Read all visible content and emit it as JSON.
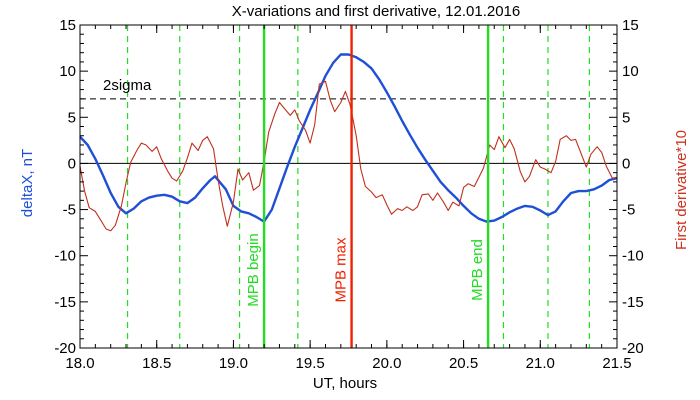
{
  "chart_data": {
    "type": "line",
    "title": "X-variations and first derivative, 12.01.2016",
    "xlabel": "UT, hours",
    "ylabel_left": "deltaX, nT",
    "ylabel_right": "First derivative*10",
    "xlim": [
      18.0,
      21.5
    ],
    "ylim": [
      -20,
      15
    ],
    "x_ticks": [
      "18.0",
      "18.5",
      "19.0",
      "19.5",
      "20.0",
      "20.5",
      "21.0",
      "21.5"
    ],
    "y_ticks": [
      "15",
      "10",
      "5",
      "0",
      "-5",
      "-10",
      "-15",
      "-20"
    ],
    "grid": false,
    "colors": {
      "deltaX": "#1f4fd6",
      "derivative": "#c0301e",
      "mpb_markers": "#22dd22",
      "mpb_max": "#ee2200",
      "axes": "#000000"
    },
    "series": [
      {
        "name": "deltaX, nT",
        "points": [
          [
            18.0,
            2.9
          ],
          [
            18.05,
            2.0
          ],
          [
            18.1,
            0.5
          ],
          [
            18.15,
            -1.3
          ],
          [
            18.2,
            -3.2
          ],
          [
            18.25,
            -4.7
          ],
          [
            18.3,
            -5.4
          ],
          [
            18.35,
            -4.9
          ],
          [
            18.4,
            -4.1
          ],
          [
            18.45,
            -3.7
          ],
          [
            18.5,
            -3.5
          ],
          [
            18.55,
            -3.4
          ],
          [
            18.6,
            -3.6
          ],
          [
            18.65,
            -4.1
          ],
          [
            18.7,
            -4.3
          ],
          [
            18.75,
            -3.7
          ],
          [
            18.8,
            -2.7
          ],
          [
            18.85,
            -1.8
          ],
          [
            18.88,
            -1.4
          ],
          [
            18.95,
            -2.8
          ],
          [
            19.0,
            -4.6
          ],
          [
            19.05,
            -5.2
          ],
          [
            19.1,
            -5.4
          ],
          [
            19.15,
            -5.8
          ],
          [
            19.2,
            -6.3
          ],
          [
            19.25,
            -5.0
          ],
          [
            19.3,
            -2.7
          ],
          [
            19.35,
            -0.4
          ],
          [
            19.4,
            1.8
          ],
          [
            19.45,
            3.8
          ],
          [
            19.5,
            5.8
          ],
          [
            19.55,
            7.6
          ],
          [
            19.6,
            9.5
          ],
          [
            19.65,
            10.9
          ],
          [
            19.7,
            11.8
          ],
          [
            19.75,
            11.8
          ],
          [
            19.8,
            11.5
          ],
          [
            19.85,
            11.0
          ],
          [
            19.9,
            10.3
          ],
          [
            19.95,
            9.1
          ],
          [
            20.0,
            7.7
          ],
          [
            20.05,
            6.2
          ],
          [
            20.1,
            4.6
          ],
          [
            20.15,
            3.1
          ],
          [
            20.2,
            1.7
          ],
          [
            20.25,
            0.4
          ],
          [
            20.3,
            -0.8
          ],
          [
            20.35,
            -2.0
          ],
          [
            20.4,
            -2.9
          ],
          [
            20.45,
            -3.7
          ],
          [
            20.5,
            -4.6
          ],
          [
            20.55,
            -5.4
          ],
          [
            20.6,
            -6.0
          ],
          [
            20.65,
            -6.3
          ],
          [
            20.7,
            -6.2
          ],
          [
            20.75,
            -5.8
          ],
          [
            20.8,
            -5.3
          ],
          [
            20.85,
            -4.9
          ],
          [
            20.9,
            -4.6
          ],
          [
            20.95,
            -4.7
          ],
          [
            21.0,
            -5.1
          ],
          [
            21.05,
            -5.6
          ],
          [
            21.1,
            -5.2
          ],
          [
            21.15,
            -4.1
          ],
          [
            21.2,
            -3.2
          ],
          [
            21.25,
            -3.0
          ],
          [
            21.3,
            -3.0
          ],
          [
            21.35,
            -2.8
          ],
          [
            21.4,
            -2.4
          ],
          [
            21.45,
            -1.8
          ],
          [
            21.5,
            -1.6
          ]
        ]
      },
      {
        "name": "First derivative*10",
        "points": [
          [
            18.0,
            -0.3
          ],
          [
            18.03,
            -3.0
          ],
          [
            18.06,
            -4.8
          ],
          [
            18.1,
            -5.2
          ],
          [
            18.13,
            -6.0
          ],
          [
            18.17,
            -7.1
          ],
          [
            18.2,
            -7.3
          ],
          [
            18.23,
            -6.7
          ],
          [
            18.27,
            -4.6
          ],
          [
            18.3,
            -2.1
          ],
          [
            18.33,
            0.1
          ],
          [
            18.37,
            1.4
          ],
          [
            18.4,
            2.2
          ],
          [
            18.43,
            2.0
          ],
          [
            18.47,
            1.3
          ],
          [
            18.5,
            1.8
          ],
          [
            18.53,
            0.5
          ],
          [
            18.57,
            -0.8
          ],
          [
            18.6,
            -1.6
          ],
          [
            18.63,
            -1.9
          ],
          [
            18.67,
            -0.8
          ],
          [
            18.7,
            0.6
          ],
          [
            18.73,
            2.2
          ],
          [
            18.77,
            1.4
          ],
          [
            18.8,
            2.5
          ],
          [
            18.83,
            2.9
          ],
          [
            18.87,
            1.6
          ],
          [
            18.9,
            -1.8
          ],
          [
            18.93,
            -4.6
          ],
          [
            18.96,
            -6.8
          ],
          [
            19.0,
            -4.2
          ],
          [
            19.03,
            -0.6
          ],
          [
            19.06,
            -1.8
          ],
          [
            19.1,
            -1.0
          ],
          [
            19.13,
            -2.9
          ],
          [
            19.17,
            -2.4
          ],
          [
            19.2,
            0.2
          ],
          [
            19.23,
            3.4
          ],
          [
            19.27,
            5.4
          ],
          [
            19.3,
            6.6
          ],
          [
            19.33,
            6.0
          ],
          [
            19.37,
            5.2
          ],
          [
            19.4,
            5.8
          ],
          [
            19.43,
            4.6
          ],
          [
            19.47,
            3.6
          ],
          [
            19.5,
            2.2
          ],
          [
            19.53,
            4.2
          ],
          [
            19.56,
            8.6
          ],
          [
            19.6,
            8.9
          ],
          [
            19.63,
            6.9
          ],
          [
            19.66,
            5.6
          ],
          [
            19.7,
            6.6
          ],
          [
            19.73,
            7.8
          ],
          [
            19.76,
            6.4
          ],
          [
            19.8,
            3.0
          ],
          [
            19.83,
            -0.6
          ],
          [
            19.86,
            -2.5
          ],
          [
            19.9,
            -3.1
          ],
          [
            19.93,
            -3.7
          ],
          [
            19.97,
            -3.4
          ],
          [
            20.0,
            -4.5
          ],
          [
            20.03,
            -5.5
          ],
          [
            20.07,
            -4.9
          ],
          [
            20.1,
            -5.1
          ],
          [
            20.13,
            -4.7
          ],
          [
            20.17,
            -5.1
          ],
          [
            20.2,
            -4.7
          ],
          [
            20.23,
            -3.4
          ],
          [
            20.27,
            -3.3
          ],
          [
            20.3,
            -4.0
          ],
          [
            20.33,
            -3.2
          ],
          [
            20.37,
            -4.2
          ],
          [
            20.4,
            -5.1
          ],
          [
            20.43,
            -4.2
          ],
          [
            20.47,
            -4.6
          ],
          [
            20.5,
            -2.6
          ],
          [
            20.53,
            -2.2
          ],
          [
            20.57,
            -2.5
          ],
          [
            20.6,
            -1.5
          ],
          [
            20.63,
            -0.5
          ],
          [
            20.67,
            2.0
          ],
          [
            20.7,
            1.5
          ],
          [
            20.73,
            2.9
          ],
          [
            20.77,
            1.7
          ],
          [
            20.8,
            2.6
          ],
          [
            20.83,
            1.6
          ],
          [
            20.87,
            -0.9
          ],
          [
            20.9,
            -2.0
          ],
          [
            20.93,
            -1.4
          ],
          [
            20.97,
            0.4
          ],
          [
            21.0,
            -0.4
          ],
          [
            21.03,
            -0.6
          ],
          [
            21.07,
            -1.0
          ],
          [
            21.1,
            0.2
          ],
          [
            21.13,
            2.6
          ],
          [
            21.17,
            3.0
          ],
          [
            21.2,
            2.5
          ],
          [
            21.23,
            2.6
          ],
          [
            21.27,
            0.9
          ],
          [
            21.3,
            -0.4
          ],
          [
            21.33,
            1.0
          ],
          [
            21.37,
            1.8
          ],
          [
            21.4,
            1.2
          ],
          [
            21.43,
            -0.3
          ],
          [
            21.47,
            -1.6
          ],
          [
            21.5,
            -1.5
          ]
        ]
      }
    ],
    "threshold": {
      "label": "2sigma",
      "y": 7.0
    },
    "zero_line": 0,
    "green_dashed_lines_x": [
      18.31,
      18.65,
      19.04,
      19.42,
      20.76,
      21.05,
      21.32
    ],
    "markers": [
      {
        "label": "MPB begin",
        "x": 19.2
      },
      {
        "label": "MPB max",
        "x": 19.77
      },
      {
        "label": "MPB end",
        "x": 20.66
      }
    ]
  }
}
